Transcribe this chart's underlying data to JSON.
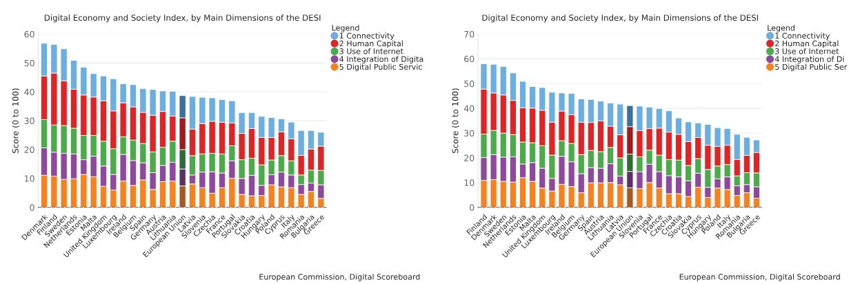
{
  "chart_data": [
    {
      "type": "bar",
      "stacked": true,
      "title": "Digital Economy and Society Index, by Main Dimensions of the DESI",
      "ylabel": "Score (0 to 100)",
      "legend_title": "Legend",
      "legend": "top right",
      "grid": "y",
      "marker": "circle",
      "ylim": [
        0,
        60
      ],
      "yticks": [
        0,
        10,
        20,
        30,
        40,
        50,
        60
      ],
      "annotations": [
        "European Commission, Digital Scoreboard"
      ],
      "categories": [
        "Denmark",
        "Finland",
        "Sweden",
        "Netherlands",
        "Estonia",
        "Malta",
        "United Kingdom",
        "Luxembourg",
        "Ireland",
        "Belgium",
        "Spain",
        "Germany",
        "Austria",
        "Lithuania",
        "European Union",
        "Latvia",
        "Slovenia",
        "Czechia",
        "France",
        "Portugal",
        "Slovakia",
        "Croatia",
        "Hungary",
        "Poland",
        "Cyprus",
        "Italy",
        "Romania",
        "Bulgaria",
        "Greece"
      ],
      "series": [
        {
          "name": "5 Digital Public Servic",
          "color": "#f5821f",
          "colors": [
            "#f5821f",
            "#f5821f",
            "#f5821f",
            "#f5821f",
            "#f5821f",
            "#f5821f",
            "#f5821f",
            "#f5821f",
            "#f5821f",
            "#f5821f",
            "#f5821f",
            "#f5821f",
            "#f5821f",
            "#f5821f",
            "#a65a22",
            "#f5821f",
            "#f5821f",
            "#f5821f",
            "#f5821f",
            "#f5821f",
            "#f5821f",
            "#f5821f",
            "#f5821f",
            "#f5821f",
            "#f5821f",
            "#f5821f",
            "#f5821f",
            "#f5821f",
            "#f5821f"
          ],
          "values": [
            11.1,
            10.8,
            9.7,
            9.9,
            11.4,
            10.6,
            7.3,
            6.0,
            9.1,
            7.6,
            9.5,
            6.2,
            8.9,
            9.1,
            7.4,
            8.1,
            6.8,
            4.9,
            6.8,
            10.1,
            4.5,
            4.0,
            4.1,
            7.8,
            7.1,
            6.8,
            4.5,
            5.5,
            3.1
          ]
        },
        {
          "name": "4 Integration of Digita",
          "color": "#8d4a9c",
          "colors": [
            "#8d4a9c",
            "#8d4a9c",
            "#8d4a9c",
            "#8d4a9c",
            "#8d4a9c",
            "#8d4a9c",
            "#8d4a9c",
            "#8d4a9c",
            "#8d4a9c",
            "#8d4a9c",
            "#8d4a9c",
            "#8d4a9c",
            "#8d4a9c",
            "#8d4a9c",
            "#5b3167",
            "#8d4a9c",
            "#8d4a9c",
            "#8d4a9c",
            "#8d4a9c",
            "#8d4a9c",
            "#8d4a9c",
            "#8d4a9c",
            "#8d4a9c",
            "#8d4a9c",
            "#8d4a9c",
            "#8d4a9c",
            "#8d4a9c",
            "#8d4a9c",
            "#8d4a9c"
          ],
          "values": [
            9.5,
            8.3,
            9.0,
            8.6,
            5.1,
            7.1,
            7.0,
            5.4,
            9.2,
            8.6,
            5.9,
            5.8,
            5.6,
            6.5,
            5.9,
            3.1,
            5.4,
            7.4,
            5.1,
            6.0,
            5.5,
            7.1,
            3.5,
            3.5,
            5.1,
            4.4,
            3.4,
            2.9,
            4.7
          ]
        },
        {
          "name": "3 Use of Internet",
          "color": "#4caa4a",
          "colors": [
            "#4caa4a",
            "#4caa4a",
            "#4caa4a",
            "#4caa4a",
            "#4caa4a",
            "#4caa4a",
            "#4caa4a",
            "#4caa4a",
            "#4caa4a",
            "#4caa4a",
            "#4caa4a",
            "#4caa4a",
            "#4caa4a",
            "#4caa4a",
            "#2f6b36",
            "#4caa4a",
            "#4caa4a",
            "#4caa4a",
            "#4caa4a",
            "#4caa4a",
            "#4caa4a",
            "#4caa4a",
            "#4caa4a",
            "#4caa4a",
            "#4caa4a",
            "#4caa4a",
            "#4caa4a",
            "#4caa4a",
            "#4caa4a"
          ],
          "values": [
            9.8,
            9.4,
            9.6,
            8.9,
            8.4,
            7.2,
            8.6,
            8.9,
            6.1,
            7.1,
            6.7,
            7.2,
            6.3,
            7.3,
            6.7,
            6.7,
            6.3,
            6.4,
            6.6,
            5.2,
            6.5,
            5.9,
            7.1,
            5.1,
            5.7,
            4.9,
            3.3,
            4.5,
            5.0
          ]
        },
        {
          "name": "2 Human Capital",
          "color": "#dc2527",
          "colors": [
            "#dc2527",
            "#dc2527",
            "#dc2527",
            "#dc2527",
            "#dc2527",
            "#dc2527",
            "#dc2527",
            "#dc2527",
            "#dc2527",
            "#dc2527",
            "#dc2527",
            "#dc2527",
            "#dc2527",
            "#dc2527",
            "#9b1c20",
            "#dc2527",
            "#dc2527",
            "#dc2527",
            "#dc2527",
            "#dc2527",
            "#dc2527",
            "#dc2527",
            "#dc2527",
            "#dc2527",
            "#dc2527",
            "#dc2527",
            "#dc2527",
            "#dc2527",
            "#dc2527"
          ],
          "values": [
            15.1,
            18.0,
            15.5,
            13.5,
            14.0,
            13.3,
            14.0,
            13.1,
            11.8,
            11.5,
            10.8,
            12.7,
            12.4,
            8.7,
            11.0,
            9.2,
            10.5,
            11.1,
            11.0,
            7.9,
            9.1,
            10.3,
            9.5,
            7.8,
            8.2,
            7.6,
            6.8,
            7.3,
            8.4
          ]
        },
        {
          "name": "1 Connectivity",
          "color": "#6caee0",
          "colors": [
            "#6caee0",
            "#6caee0",
            "#6caee0",
            "#6caee0",
            "#6caee0",
            "#6caee0",
            "#6caee0",
            "#6caee0",
            "#6caee0",
            "#6caee0",
            "#6caee0",
            "#6caee0",
            "#6caee0",
            "#6caee0",
            "#3d7098",
            "#6caee0",
            "#6caee0",
            "#6caee0",
            "#6caee0",
            "#6caee0",
            "#6caee0",
            "#6caee0",
            "#6caee0",
            "#6caee0",
            "#6caee0",
            "#6caee0",
            "#6caee0",
            "#6caee0",
            "#6caee0"
          ],
          "values": [
            11.3,
            9.9,
            11.1,
            10.0,
            9.6,
            8.1,
            8.6,
            11.1,
            6.6,
            7.7,
            8.2,
            8.9,
            7.1,
            8.6,
            7.7,
            11.3,
            9.1,
            8.1,
            7.8,
            7.7,
            7.2,
            5.5,
            7.3,
            6.9,
            4.5,
            5.8,
            8.6,
            6.4,
            4.8
          ]
        }
      ]
    },
    {
      "type": "bar",
      "stacked": true,
      "title": "Digital Economy and Society Index, by Main Dimensions of the DESI",
      "ylabel": "Score (0 to 100)",
      "legend_title": "Legend",
      "legend": "top right",
      "grid": "y",
      "marker": "circle",
      "ylim": [
        0,
        70
      ],
      "yticks": [
        0,
        10,
        20,
        30,
        40,
        50,
        60,
        70
      ],
      "annotations": [
        "European Commission, Digital Scoreboard"
      ],
      "categories": [
        "Finland",
        "Denmark",
        "Sweden",
        "Netherlands",
        "Estonia",
        "Malta",
        "United Kingdom",
        "Luxembourg",
        "Ireland",
        "Belgium",
        "Germany",
        "Spain",
        "Austria",
        "Lithuania",
        "Latvia",
        "European Union",
        "Slovenia",
        "Portugal",
        "France",
        "Czechia",
        "Croatia",
        "Slovakia",
        "Cyprus",
        "Hungary",
        "Poland",
        "Italy",
        "Romania",
        "Bulgaria",
        "Greece"
      ],
      "series": [
        {
          "name": "5 Digital Public Ser",
          "color": "#f5821f",
          "colors": [
            "#f5821f",
            "#f5821f",
            "#f5821f",
            "#f5821f",
            "#f5821f",
            "#f5821f",
            "#f5821f",
            "#f5821f",
            "#f5821f",
            "#f5821f",
            "#f5821f",
            "#f5821f",
            "#f5821f",
            "#f5821f",
            "#f5821f",
            "#a65a22",
            "#f5821f",
            "#f5821f",
            "#f5821f",
            "#f5821f",
            "#f5821f",
            "#f5821f",
            "#f5821f",
            "#f5821f",
            "#f5821f",
            "#f5821f",
            "#f5821f",
            "#f5821f",
            "#f5821f"
          ],
          "values": [
            10.9,
            11.2,
            10.5,
            10.2,
            12.0,
            10.5,
            7.8,
            6.6,
            9.3,
            8.4,
            5.9,
            9.9,
            9.9,
            10.0,
            9.1,
            7.9,
            7.6,
            10.0,
            7.8,
            5.5,
            5.5,
            4.4,
            8.1,
            4.0,
            7.8,
            7.2,
            4.8,
            5.9,
            3.7
          ]
        },
        {
          "name": "4 Integration of Di",
          "color": "#8d4a9c",
          "colors": [
            "#8d4a9c",
            "#8d4a9c",
            "#8d4a9c",
            "#8d4a9c",
            "#8d4a9c",
            "#8d4a9c",
            "#8d4a9c",
            "#8d4a9c",
            "#8d4a9c",
            "#8d4a9c",
            "#8d4a9c",
            "#8d4a9c",
            "#8d4a9c",
            "#8d4a9c",
            "#8d4a9c",
            "#5b3167",
            "#8d4a9c",
            "#8d4a9c",
            "#8d4a9c",
            "#8d4a9c",
            "#8d4a9c",
            "#8d4a9c",
            "#8d4a9c",
            "#8d4a9c",
            "#8d4a9c",
            "#8d4a9c",
            "#8d4a9c",
            "#8d4a9c",
            "#8d4a9c"
          ],
          "values": [
            9.2,
            10.1,
            9.8,
            10.2,
            5.5,
            7.6,
            8.0,
            5.1,
            11.3,
            10.0,
            7.7,
            6.1,
            5.9,
            7.6,
            3.5,
            6.6,
            6.8,
            7.4,
            6.6,
            7.3,
            6.8,
            6.3,
            5.7,
            4.1,
            3.7,
            5.1,
            3.9,
            3.3,
            4.6
          ]
        },
        {
          "name": "3 Use of Internet",
          "color": "#4caa4a",
          "colors": [
            "#4caa4a",
            "#4caa4a",
            "#4caa4a",
            "#4caa4a",
            "#4caa4a",
            "#4caa4a",
            "#4caa4a",
            "#4caa4a",
            "#4caa4a",
            "#4caa4a",
            "#4caa4a",
            "#4caa4a",
            "#4caa4a",
            "#4caa4a",
            "#4caa4a",
            "#2f6b36",
            "#4caa4a",
            "#4caa4a",
            "#4caa4a",
            "#4caa4a",
            "#4caa4a",
            "#4caa4a",
            "#4caa4a",
            "#4caa4a",
            "#4caa4a",
            "#4caa4a",
            "#4caa4a",
            "#4caa4a",
            "#4caa4a"
          ],
          "values": [
            9.5,
            9.8,
            9.7,
            9.0,
            8.9,
            8.0,
            9.1,
            9.4,
            6.3,
            7.4,
            7.7,
            7.0,
            6.7,
            6.6,
            7.4,
            7.0,
            6.0,
            5.7,
            6.7,
            6.5,
            6.8,
            6.2,
            5.9,
            7.2,
            5.2,
            5.0,
            4.0,
            4.8,
            5.6
          ]
        },
        {
          "name": "2 Human Capital",
          "color": "#dc2527",
          "colors": [
            "#dc2527",
            "#dc2527",
            "#dc2527",
            "#dc2527",
            "#dc2527",
            "#dc2527",
            "#dc2527",
            "#dc2527",
            "#dc2527",
            "#dc2527",
            "#dc2527",
            "#dc2527",
            "#dc2527",
            "#dc2527",
            "#dc2527",
            "#9b1c20",
            "#dc2527",
            "#dc2527",
            "#dc2527",
            "#dc2527",
            "#dc2527",
            "#dc2527",
            "#dc2527",
            "#dc2527",
            "#dc2527",
            "#dc2527",
            "#dc2527",
            "#dc2527",
            "#dc2527"
          ],
          "values": [
            18.2,
            15.1,
            15.4,
            13.8,
            13.8,
            14.0,
            14.3,
            13.3,
            12.0,
            11.6,
            13.1,
            11.3,
            12.4,
            8.6,
            9.3,
            11.1,
            10.6,
            8.7,
            10.9,
            11.1,
            10.4,
            9.7,
            8.5,
            9.8,
            7.9,
            7.8,
            6.6,
            7.0,
            8.3
          ]
        },
        {
          "name": "1 Connectivity",
          "color": "#6caee0",
          "colors": [
            "#6caee0",
            "#6caee0",
            "#6caee0",
            "#6caee0",
            "#6caee0",
            "#6caee0",
            "#6caee0",
            "#6caee0",
            "#6caee0",
            "#6caee0",
            "#6caee0",
            "#6caee0",
            "#6caee0",
            "#6caee0",
            "#6caee0",
            "#3d7098",
            "#6caee0",
            "#6caee0",
            "#6caee0",
            "#6caee0",
            "#6caee0",
            "#6caee0",
            "#6caee0",
            "#6caee0",
            "#6caee0",
            "#6caee0",
            "#6caee0",
            "#6caee0",
            "#6caee0"
          ],
          "values": [
            10.2,
            11.6,
            11.5,
            11.1,
            10.7,
            8.7,
            9.2,
            12.1,
            7.3,
            8.6,
            9.4,
            9.3,
            8.0,
            9.3,
            12.4,
            8.5,
            9.9,
            8.7,
            7.9,
            8.6,
            6.6,
            7.9,
            5.9,
            8.4,
            7.6,
            6.7,
            10.2,
            7.3,
            5.0
          ]
        }
      ]
    }
  ]
}
